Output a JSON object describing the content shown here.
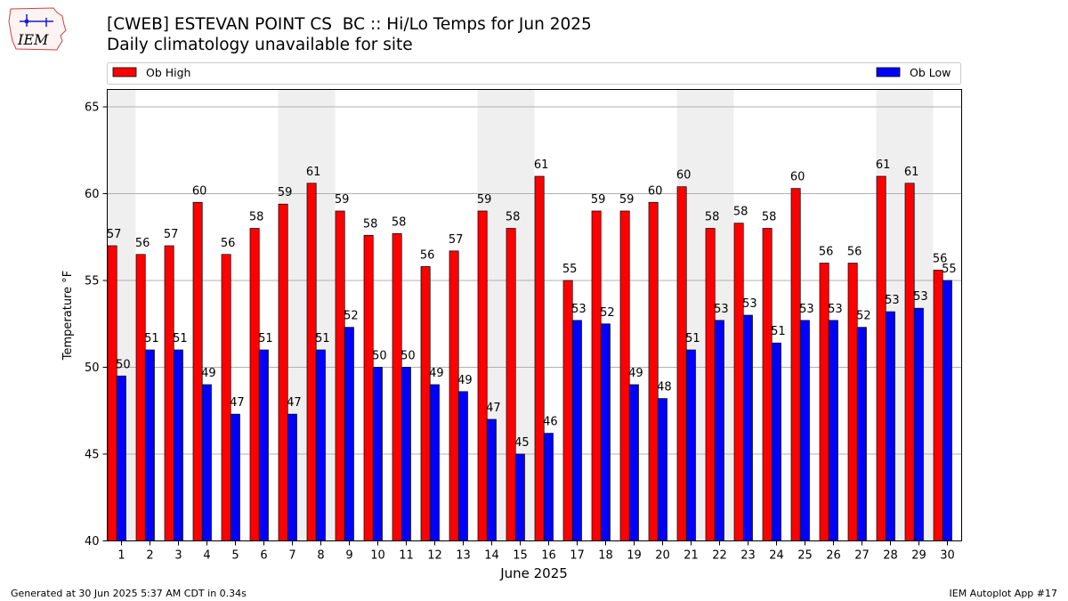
{
  "header": {
    "title_line1": "[CWEB] ESTEVAN POINT CS  BC :: Hi/Lo Temps for Jun 2025",
    "title_line2": "Daily climatology unavailable for site"
  },
  "logo": {
    "text": "IEM",
    "icon": "iem-logo-icon"
  },
  "footer": {
    "left": "Generated at 30 Jun 2025 5:37 AM CDT in 0.34s",
    "right": "IEM Autoplot App #17"
  },
  "chart_data": {
    "type": "bar",
    "title": "[CWEB] ESTEVAN POINT CS  BC :: Hi/Lo Temps for Jun 2025",
    "subtitle": "Daily climatology unavailable for site",
    "xlabel": "June 2025",
    "ylabel": "Temperature °F",
    "ylim": [
      40,
      66
    ],
    "yticks": [
      40,
      45,
      50,
      55,
      60,
      65
    ],
    "grid": true,
    "legend_placement": "top",
    "categories": [
      "1",
      "2",
      "3",
      "4",
      "5",
      "6",
      "7",
      "8",
      "9",
      "10",
      "11",
      "12",
      "13",
      "14",
      "15",
      "16",
      "17",
      "18",
      "19",
      "20",
      "21",
      "22",
      "23",
      "24",
      "25",
      "26",
      "27",
      "28",
      "29",
      "30"
    ],
    "weekend_days": [
      1,
      7,
      8,
      14,
      15,
      21,
      22,
      28,
      29
    ],
    "series": [
      {
        "name": "Ob High",
        "color": "#ff0000",
        "values": [
          57.0,
          56.5,
          57.0,
          59.5,
          56.5,
          58.0,
          59.4,
          60.6,
          59.0,
          57.6,
          57.7,
          55.8,
          56.7,
          59.0,
          58.0,
          61.0,
          55.0,
          59.0,
          59.0,
          59.5,
          60.4,
          58.0,
          58.3,
          58.0,
          60.3,
          56.0,
          56.0,
          61.0,
          60.6,
          55.6
        ],
        "labels": [
          "57",
          "56",
          "57",
          "60",
          "56",
          "58",
          "59",
          "61",
          "59",
          "58",
          "58",
          "56",
          "57",
          "59",
          "58",
          "61",
          "55",
          "59",
          "59",
          "60",
          "60",
          "58",
          "58",
          "58",
          "60",
          "56",
          "56",
          "61",
          "61",
          "56"
        ]
      },
      {
        "name": "Ob Low",
        "color": "#0000ff",
        "values": [
          49.5,
          51.0,
          51.0,
          49.0,
          47.3,
          51.0,
          47.3,
          51.0,
          52.3,
          50.0,
          50.0,
          49.0,
          48.6,
          47.0,
          45.0,
          46.2,
          52.7,
          52.5,
          49.0,
          48.2,
          51.0,
          52.7,
          53.0,
          51.4,
          52.7,
          52.7,
          52.3,
          53.2,
          53.4,
          55.0
        ],
        "labels": [
          "50",
          "51",
          "51",
          "49",
          "47",
          "51",
          "47",
          "51",
          "52",
          "50",
          "50",
          "49",
          "49",
          "47",
          "45",
          "46",
          "53",
          "52",
          "49",
          "48",
          "51",
          "53",
          "53",
          "51",
          "53",
          "53",
          "52",
          "53",
          "53",
          "55"
        ]
      }
    ]
  }
}
